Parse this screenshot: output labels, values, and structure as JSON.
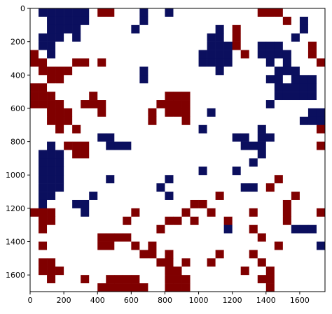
{
  "chart_data": {
    "type": "heatmap",
    "colormap": [
      "#ffffff",
      "#0b0f5e",
      "#800000"
    ],
    "xlim": [
      0,
      1750
    ],
    "ylim": [
      0,
      1700
    ],
    "y_inverted": true,
    "xticks": [
      0,
      200,
      400,
      600,
      800,
      1000,
      1200,
      1400,
      1600
    ],
    "yticks": [
      0,
      200,
      400,
      600,
      800,
      1000,
      1200,
      1400,
      1600
    ],
    "z": [
      [
        0,
        1,
        1,
        1,
        1,
        1,
        1,
        0,
        2,
        2,
        0,
        0,
        0,
        1,
        0,
        0,
        1,
        0,
        0,
        0,
        0,
        0,
        0,
        0,
        0,
        0,
        0,
        2,
        2,
        2,
        0,
        0,
        0,
        0,
        0
      ],
      [
        0,
        0,
        1,
        1,
        1,
        1,
        1,
        0,
        0,
        0,
        0,
        0,
        0,
        1,
        0,
        0,
        0,
        0,
        0,
        0,
        0,
        0,
        0,
        0,
        0,
        0,
        0,
        0,
        0,
        0,
        2,
        0,
        1,
        0,
        0
      ],
      [
        0,
        0,
        1,
        1,
        1,
        1,
        0,
        0,
        0,
        0,
        0,
        0,
        1,
        0,
        0,
        0,
        0,
        0,
        0,
        0,
        0,
        0,
        1,
        0,
        2,
        0,
        0,
        0,
        0,
        0,
        0,
        0,
        1,
        0,
        0
      ],
      [
        0,
        1,
        1,
        1,
        0,
        1,
        0,
        0,
        0,
        0,
        0,
        0,
        0,
        0,
        0,
        0,
        0,
        0,
        0,
        0,
        0,
        1,
        1,
        0,
        2,
        0,
        0,
        0,
        0,
        0,
        0,
        1,
        0,
        0,
        0
      ],
      [
        0,
        1,
        1,
        0,
        0,
        0,
        0,
        0,
        0,
        0,
        0,
        0,
        0,
        0,
        0,
        0,
        0,
        0,
        0,
        0,
        0,
        1,
        1,
        1,
        2,
        0,
        0,
        1,
        1,
        1,
        0,
        0,
        0,
        2,
        0
      ],
      [
        2,
        0,
        1,
        0,
        0,
        0,
        0,
        0,
        0,
        0,
        0,
        0,
        0,
        0,
        0,
        0,
        0,
        0,
        0,
        0,
        1,
        1,
        1,
        1,
        0,
        2,
        0,
        1,
        1,
        1,
        1,
        0,
        0,
        2,
        0
      ],
      [
        2,
        2,
        0,
        0,
        0,
        2,
        2,
        0,
        2,
        0,
        0,
        0,
        0,
        0,
        0,
        0,
        0,
        0,
        0,
        0,
        1,
        1,
        1,
        1,
        0,
        0,
        0,
        0,
        1,
        0,
        1,
        0,
        0,
        0,
        2
      ],
      [
        0,
        2,
        2,
        2,
        2,
        0,
        0,
        0,
        0,
        0,
        0,
        0,
        0,
        1,
        0,
        0,
        0,
        0,
        0,
        0,
        0,
        0,
        1,
        0,
        0,
        0,
        0,
        0,
        0,
        1,
        1,
        1,
        0,
        0,
        0
      ],
      [
        0,
        0,
        2,
        2,
        0,
        0,
        0,
        0,
        0,
        0,
        0,
        0,
        0,
        1,
        0,
        0,
        0,
        0,
        0,
        0,
        0,
        0,
        0,
        0,
        0,
        0,
        0,
        0,
        1,
        1,
        0,
        1,
        1,
        1,
        0
      ],
      [
        2,
        2,
        0,
        0,
        0,
        0,
        0,
        0,
        0,
        0,
        0,
        0,
        0,
        0,
        0,
        0,
        0,
        0,
        0,
        0,
        0,
        0,
        0,
        0,
        0,
        0,
        0,
        0,
        0,
        1,
        1,
        1,
        1,
        1,
        0
      ],
      [
        2,
        2,
        2,
        0,
        0,
        0,
        0,
        2,
        0,
        0,
        0,
        0,
        0,
        0,
        0,
        0,
        2,
        2,
        2,
        0,
        0,
        0,
        0,
        0,
        0,
        0,
        0,
        0,
        0,
        1,
        1,
        1,
        1,
        1,
        0
      ],
      [
        2,
        2,
        2,
        2,
        0,
        0,
        2,
        2,
        2,
        0,
        0,
        0,
        0,
        0,
        0,
        2,
        2,
        2,
        2,
        0,
        0,
        0,
        0,
        0,
        0,
        0,
        0,
        0,
        1,
        0,
        0,
        0,
        0,
        0,
        0
      ],
      [
        0,
        0,
        2,
        2,
        2,
        0,
        0,
        0,
        2,
        0,
        0,
        0,
        0,
        0,
        2,
        0,
        2,
        2,
        2,
        0,
        0,
        1,
        0,
        0,
        0,
        0,
        0,
        0,
        0,
        0,
        0,
        0,
        0,
        1,
        1
      ],
      [
        0,
        0,
        2,
        2,
        2,
        0,
        0,
        0,
        0,
        0,
        0,
        0,
        0,
        0,
        2,
        0,
        0,
        0,
        2,
        0,
        0,
        0,
        0,
        0,
        0,
        0,
        0,
        0,
        0,
        0,
        0,
        0,
        1,
        1,
        1
      ],
      [
        0,
        0,
        0,
        2,
        0,
        2,
        0,
        0,
        0,
        0,
        0,
        0,
        0,
        0,
        0,
        0,
        0,
        0,
        0,
        0,
        1,
        0,
        0,
        0,
        0,
        0,
        0,
        1,
        0,
        0,
        0,
        0,
        0,
        0,
        2
      ],
      [
        0,
        0,
        0,
        0,
        0,
        0,
        0,
        0,
        1,
        1,
        0,
        0,
        0,
        0,
        0,
        0,
        0,
        0,
        0,
        0,
        0,
        0,
        0,
        0,
        1,
        1,
        0,
        1,
        1,
        0,
        0,
        0,
        0,
        0,
        0
      ],
      [
        0,
        0,
        1,
        0,
        2,
        2,
        2,
        0,
        0,
        1,
        1,
        1,
        0,
        0,
        0,
        0,
        0,
        0,
        0,
        0,
        0,
        0,
        0,
        0,
        0,
        1,
        1,
        1,
        0,
        0,
        0,
        0,
        0,
        0,
        2
      ],
      [
        0,
        1,
        1,
        1,
        0,
        2,
        2,
        0,
        0,
        0,
        0,
        0,
        0,
        0,
        0,
        0,
        0,
        0,
        0,
        0,
        0,
        0,
        0,
        0,
        0,
        0,
        0,
        1,
        0,
        0,
        0,
        0,
        0,
        0,
        0
      ],
      [
        0,
        1,
        1,
        1,
        0,
        0,
        0,
        0,
        0,
        0,
        0,
        0,
        0,
        0,
        0,
        0,
        0,
        0,
        0,
        0,
        0,
        0,
        0,
        0,
        0,
        0,
        1,
        0,
        0,
        0,
        0,
        0,
        0,
        0,
        0
      ],
      [
        0,
        1,
        1,
        1,
        0,
        0,
        0,
        0,
        0,
        0,
        0,
        0,
        0,
        0,
        0,
        0,
        0,
        0,
        0,
        0,
        1,
        0,
        0,
        0,
        1,
        0,
        0,
        0,
        0,
        0,
        0,
        0,
        0,
        0,
        0
      ],
      [
        0,
        1,
        1,
        1,
        0,
        0,
        0,
        0,
        0,
        1,
        0,
        0,
        0,
        0,
        0,
        0,
        1,
        0,
        0,
        0,
        0,
        0,
        0,
        0,
        0,
        0,
        0,
        0,
        0,
        2,
        0,
        0,
        0,
        0,
        0
      ],
      [
        0,
        1,
        1,
        1,
        0,
        0,
        0,
        0,
        0,
        0,
        0,
        0,
        0,
        0,
        0,
        1,
        0,
        0,
        0,
        0,
        0,
        0,
        0,
        0,
        0,
        1,
        1,
        0,
        2,
        0,
        0,
        0,
        0,
        0,
        0
      ],
      [
        0,
        1,
        1,
        0,
        0,
        0,
        0,
        1,
        0,
        0,
        0,
        0,
        0,
        0,
        0,
        0,
        1,
        0,
        0,
        0,
        0,
        0,
        2,
        0,
        0,
        0,
        0,
        0,
        0,
        0,
        0,
        2,
        0,
        0,
        0
      ],
      [
        0,
        1,
        0,
        0,
        0,
        1,
        1,
        0,
        0,
        0,
        0,
        0,
        0,
        0,
        0,
        0,
        0,
        0,
        0,
        2,
        2,
        0,
        0,
        0,
        0,
        0,
        0,
        0,
        0,
        0,
        2,
        0,
        0,
        0,
        0
      ],
      [
        2,
        2,
        2,
        0,
        0,
        0,
        1,
        0,
        0,
        0,
        0,
        0,
        2,
        0,
        0,
        0,
        0,
        0,
        2,
        0,
        0,
        2,
        0,
        0,
        0,
        0,
        2,
        0,
        0,
        0,
        2,
        0,
        0,
        0,
        2
      ],
      [
        0,
        2,
        2,
        0,
        0,
        0,
        0,
        0,
        0,
        0,
        0,
        2,
        0,
        0,
        0,
        0,
        2,
        2,
        0,
        2,
        0,
        0,
        0,
        2,
        0,
        0,
        0,
        0,
        0,
        0,
        2,
        0,
        0,
        0,
        0
      ],
      [
        0,
        2,
        0,
        0,
        0,
        0,
        0,
        0,
        0,
        0,
        0,
        0,
        0,
        0,
        0,
        2,
        0,
        0,
        0,
        0,
        0,
        0,
        0,
        1,
        0,
        0,
        2,
        0,
        0,
        0,
        0,
        1,
        1,
        1,
        0
      ],
      [
        0,
        0,
        0,
        0,
        0,
        0,
        0,
        0,
        2,
        2,
        2,
        2,
        0,
        0,
        0,
        0,
        0,
        0,
        0,
        0,
        0,
        0,
        0,
        0,
        0,
        0,
        0,
        2,
        0,
        0,
        0,
        0,
        0,
        0,
        0
      ],
      [
        0,
        2,
        0,
        0,
        0,
        0,
        0,
        0,
        2,
        2,
        0,
        0,
        2,
        0,
        2,
        0,
        0,
        0,
        0,
        0,
        0,
        0,
        0,
        0,
        0,
        0,
        0,
        0,
        0,
        2,
        0,
        0,
        0,
        0,
        1
      ],
      [
        0,
        0,
        0,
        0,
        0,
        0,
        0,
        0,
        0,
        0,
        0,
        0,
        0,
        2,
        2,
        0,
        2,
        0,
        0,
        0,
        0,
        0,
        2,
        0,
        0,
        0,
        2,
        0,
        0,
        0,
        0,
        0,
        0,
        0,
        0
      ],
      [
        0,
        2,
        2,
        0,
        0,
        0,
        0,
        0,
        0,
        0,
        0,
        0,
        0,
        0,
        0,
        2,
        2,
        0,
        2,
        0,
        0,
        2,
        0,
        0,
        0,
        0,
        0,
        2,
        0,
        0,
        0,
        0,
        0,
        0,
        0
      ],
      [
        0,
        2,
        2,
        2,
        0,
        0,
        0,
        0,
        0,
        0,
        0,
        0,
        0,
        0,
        0,
        0,
        2,
        2,
        0,
        0,
        0,
        0,
        0,
        0,
        0,
        2,
        0,
        0,
        2,
        0,
        0,
        0,
        0,
        0,
        0
      ],
      [
        0,
        0,
        2,
        0,
        0,
        0,
        2,
        0,
        0,
        2,
        2,
        2,
        2,
        0,
        0,
        0,
        2,
        2,
        2,
        0,
        0,
        0,
        0,
        0,
        0,
        0,
        0,
        2,
        2,
        0,
        0,
        0,
        0,
        0,
        0
      ],
      [
        0,
        0,
        0,
        0,
        0,
        0,
        0,
        0,
        2,
        2,
        2,
        2,
        2,
        2,
        0,
        0,
        2,
        2,
        2,
        0,
        0,
        0,
        0,
        0,
        0,
        0,
        0,
        0,
        2,
        0,
        0,
        0,
        0,
        0,
        0
      ]
    ]
  }
}
